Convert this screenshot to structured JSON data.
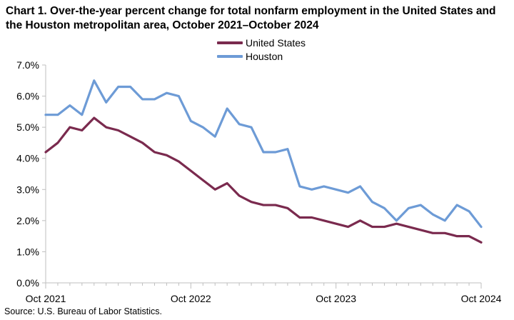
{
  "chart_data": {
    "type": "line",
    "title": "Chart 1. Over-the-year percent change for total nonfarm employment in the United States and the Houston metropolitan area, October 2021–October 2024",
    "xlabel": "",
    "ylabel": "",
    "x": [
      "Oct 2021",
      "Nov 2021",
      "Dec 2021",
      "Jan 2022",
      "Feb 2022",
      "Mar 2022",
      "Apr 2022",
      "May 2022",
      "Jun 2022",
      "Jul 2022",
      "Aug 2022",
      "Sep 2022",
      "Oct 2022",
      "Nov 2022",
      "Dec 2022",
      "Jan 2023",
      "Feb 2023",
      "Mar 2023",
      "Apr 2023",
      "May 2023",
      "Jun 2023",
      "Jul 2023",
      "Aug 2023",
      "Sep 2023",
      "Oct 2023",
      "Nov 2023",
      "Dec 2023",
      "Jan 2024",
      "Feb 2024",
      "Mar 2024",
      "Apr 2024",
      "May 2024",
      "Jun 2024",
      "Jul 2024",
      "Aug 2024",
      "Sep 2024",
      "Oct 2024"
    ],
    "x_tick_labels": [
      "Oct 2021",
      "Oct 2022",
      "Oct 2023",
      "Oct 2024"
    ],
    "y_tick_labels": [
      "0.0%",
      "1.0%",
      "2.0%",
      "3.0%",
      "4.0%",
      "5.0%",
      "6.0%",
      "7.0%"
    ],
    "ylim": [
      0,
      7
    ],
    "y_ticks": [
      0,
      1,
      2,
      3,
      4,
      5,
      6,
      7
    ],
    "grid": false,
    "legend_position": "top-center",
    "series": [
      {
        "name": "United States",
        "color": "#7a2a4e",
        "values": [
          4.2,
          4.5,
          5.0,
          4.9,
          5.3,
          5.0,
          4.9,
          4.7,
          4.5,
          4.2,
          4.1,
          3.9,
          3.6,
          3.3,
          3.0,
          3.2,
          2.8,
          2.6,
          2.5,
          2.5,
          2.4,
          2.1,
          2.1,
          2.0,
          1.9,
          1.8,
          2.0,
          1.8,
          1.8,
          1.9,
          1.8,
          1.7,
          1.6,
          1.6,
          1.5,
          1.5,
          1.3
        ]
      },
      {
        "name": "Houston",
        "color": "#6d9bd6",
        "values": [
          5.4,
          5.4,
          5.7,
          5.4,
          6.5,
          5.8,
          6.3,
          6.3,
          5.9,
          5.9,
          6.1,
          6.0,
          5.2,
          5.0,
          4.7,
          5.6,
          5.1,
          5.0,
          4.2,
          4.2,
          4.3,
          3.1,
          3.0,
          3.1,
          3.0,
          2.9,
          3.1,
          2.6,
          2.4,
          2.0,
          2.4,
          2.5,
          2.2,
          2.0,
          2.5,
          2.3,
          1.8
        ]
      }
    ],
    "source": "Source: U.S. Bureau of Labor Statistics."
  }
}
